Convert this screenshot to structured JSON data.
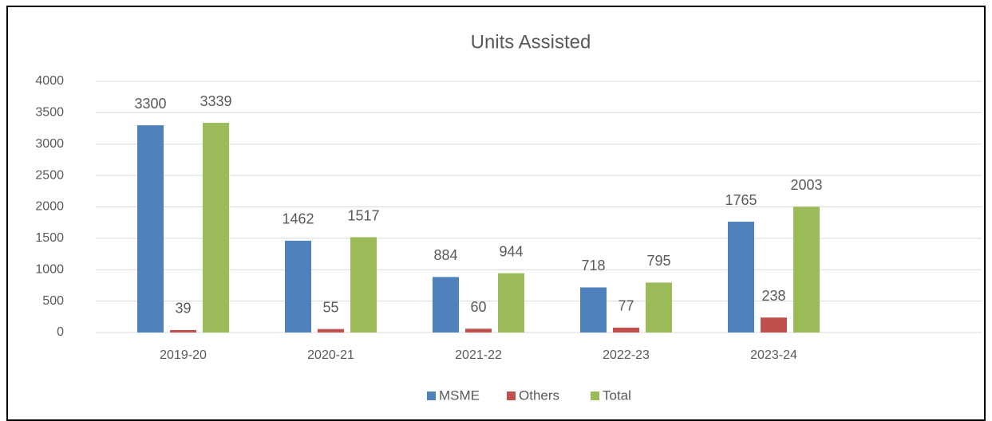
{
  "chart_data": {
    "type": "bar",
    "title": "Units Assisted",
    "categories": [
      "2019-20",
      "2020-21",
      "2021-22",
      "2022-23",
      "2023-24"
    ],
    "series": [
      {
        "name": "MSME",
        "color": "#4f81bd",
        "values": [
          3300,
          1462,
          884,
          718,
          1765
        ]
      },
      {
        "name": "Others",
        "color": "#c0504d",
        "values": [
          39,
          55,
          60,
          77,
          238
        ]
      },
      {
        "name": "Total",
        "color": "#9bbb59",
        "values": [
          3339,
          1517,
          944,
          795,
          2003
        ]
      }
    ],
    "ylim": [
      0,
      4000
    ],
    "yticks": [
      0,
      500,
      1000,
      1500,
      2000,
      2500,
      3000,
      3500,
      4000
    ],
    "grid": true,
    "legend": "bottom"
  }
}
